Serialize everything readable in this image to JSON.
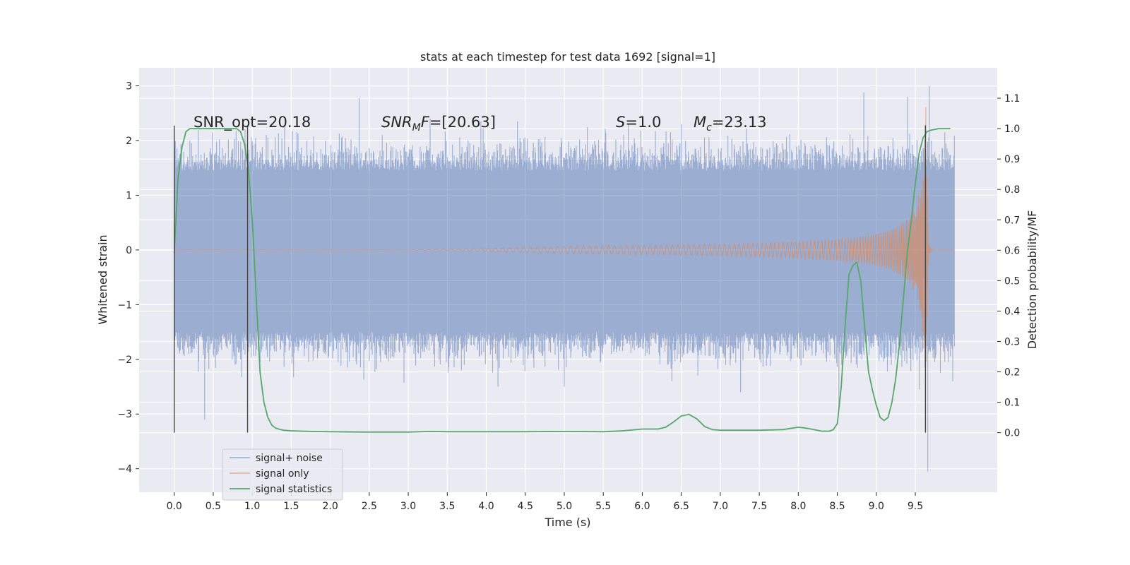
{
  "chart_data": {
    "type": "line",
    "title": "stats at each timestep for test data 1692 [signal=1]",
    "xlabel": "Time (s)",
    "ylabel": "Whitened strain",
    "y2label": "Detection probability/MF",
    "xlim": [
      -0.45,
      10.55
    ],
    "ylim": [
      -4.43,
      3.33
    ],
    "y2lim": [
      -0.196,
      1.2
    ],
    "x_ticks": [
      "0.0",
      "0.5",
      "1.0",
      "1.5",
      "2.0",
      "2.5",
      "3.0",
      "3.5",
      "4.0",
      "4.5",
      "5.0",
      "5.5",
      "6.0",
      "6.5",
      "7.0",
      "7.5",
      "8.0",
      "8.5",
      "9.0",
      "9.5"
    ],
    "y_ticks": [
      "3",
      "2",
      "1",
      "0",
      "−1",
      "−2",
      "−3",
      "−4"
    ],
    "y2_ticks": [
      "1.1",
      "1.0",
      "0.9",
      "0.8",
      "0.7",
      "0.6",
      "0.5",
      "0.4",
      "0.3",
      "0.2",
      "0.1",
      "0.0"
    ],
    "grid": true,
    "legend_position": "lower-left",
    "annotations": [
      {
        "label": "SNR_opt",
        "value": "=20.18"
      },
      {
        "label": "SNR",
        "sub": "M",
        "label_after": "F",
        "value": "=[20.63]"
      },
      {
        "label": "S",
        "value": "=1.0"
      },
      {
        "label": "M",
        "sub": "c",
        "value": "=23.13"
      }
    ],
    "markers": [
      0.0,
      0.94,
      9.63
    ],
    "series": [
      {
        "name": "signal+ noise",
        "color": "#4c72b0",
        "x_range": [
          0.0,
          10.0
        ],
        "envelope": [
          1.45,
          -1.5
        ],
        "peaks": [
          [
            0.39,
            -3.1
          ],
          [
            0.49,
            2.15
          ],
          [
            2.37,
            2.78
          ],
          [
            2.43,
            -2.37
          ],
          [
            3.28,
            2.4
          ],
          [
            4.15,
            -2.5
          ],
          [
            4.4,
            2.35
          ],
          [
            5.0,
            -2.5
          ],
          [
            5.82,
            2.3
          ],
          [
            6.38,
            -2.4
          ],
          [
            6.5,
            2.3
          ],
          [
            7.26,
            -2.6
          ],
          [
            8.52,
            -2.9
          ],
          [
            8.84,
            2.88
          ],
          [
            9.4,
            2.8
          ],
          [
            9.55,
            -2.55
          ],
          [
            9.66,
            -4.05
          ],
          [
            9.68,
            3.0
          ],
          [
            9.98,
            -2.4
          ]
        ]
      },
      {
        "name": "signal only",
        "color": "#dd8452",
        "chirp": {
          "t_start": 0.0,
          "t_merge": 9.64,
          "t_end": 10.0,
          "peak_amplitude": 3.0
        }
      },
      {
        "name": "signal statistics",
        "color": "#55a868",
        "axis": "right",
        "x": [
          0.0,
          0.05,
          0.1,
          0.15,
          0.2,
          0.3,
          0.4,
          0.5,
          0.6,
          0.7,
          0.8,
          0.85,
          0.9,
          0.95,
          1.0,
          1.05,
          1.1,
          1.15,
          1.2,
          1.25,
          1.3,
          1.4,
          1.5,
          1.75,
          2.0,
          2.5,
          3.0,
          3.3,
          3.5,
          4.0,
          4.5,
          5.0,
          5.5,
          5.75,
          6.0,
          6.2,
          6.3,
          6.4,
          6.5,
          6.6,
          6.7,
          6.8,
          6.9,
          7.0,
          7.5,
          7.8,
          8.0,
          8.1,
          8.2,
          8.3,
          8.4,
          8.45,
          8.5,
          8.55,
          8.6,
          8.65,
          8.7,
          8.75,
          8.8,
          8.85,
          8.9,
          8.95,
          9.0,
          9.05,
          9.1,
          9.15,
          9.2,
          9.25,
          9.3,
          9.35,
          9.4,
          9.45,
          9.5,
          9.55,
          9.6,
          9.65,
          9.7,
          9.8,
          9.9,
          9.95
        ],
        "values": [
          0.59,
          0.84,
          0.94,
          0.99,
          1.0,
          1.0,
          1.0,
          1.0,
          1.0,
          1.0,
          1.0,
          0.99,
          0.95,
          0.87,
          0.7,
          0.45,
          0.2,
          0.1,
          0.05,
          0.025,
          0.015,
          0.008,
          0.006,
          0.004,
          0.003,
          0.002,
          0.002,
          0.004,
          0.003,
          0.003,
          0.003,
          0.004,
          0.003,
          0.006,
          0.012,
          0.012,
          0.018,
          0.035,
          0.055,
          0.06,
          0.045,
          0.02,
          0.01,
          0.008,
          0.008,
          0.01,
          0.018,
          0.015,
          0.01,
          0.005,
          0.005,
          0.01,
          0.03,
          0.15,
          0.35,
          0.52,
          0.55,
          0.56,
          0.5,
          0.35,
          0.2,
          0.14,
          0.09,
          0.05,
          0.04,
          0.05,
          0.1,
          0.18,
          0.3,
          0.45,
          0.6,
          0.7,
          0.82,
          0.92,
          0.97,
          0.99,
          0.995,
          1.0,
          1.0,
          1.0
        ]
      }
    ]
  }
}
